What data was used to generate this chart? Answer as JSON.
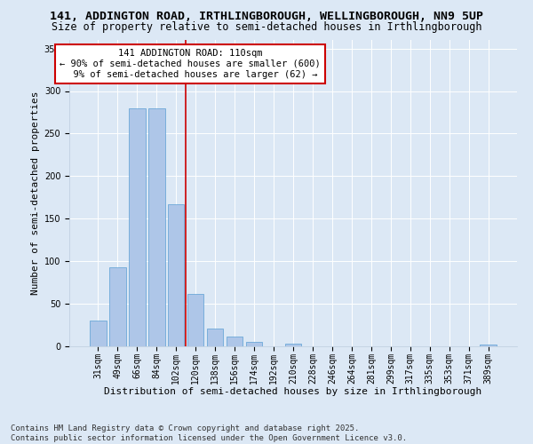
{
  "title_line1": "141, ADDINGTON ROAD, IRTHLINGBOROUGH, WELLINGBOROUGH, NN9 5UP",
  "title_line2": "Size of property relative to semi-detached houses in Irthlingborough",
  "xlabel": "Distribution of semi-detached houses by size in Irthlingborough",
  "ylabel": "Number of semi-detached properties",
  "categories": [
    "31sqm",
    "49sqm",
    "66sqm",
    "84sqm",
    "102sqm",
    "120sqm",
    "138sqm",
    "156sqm",
    "174sqm",
    "192sqm",
    "210sqm",
    "228sqm",
    "246sqm",
    "264sqm",
    "281sqm",
    "299sqm",
    "317sqm",
    "335sqm",
    "353sqm",
    "371sqm",
    "389sqm"
  ],
  "values": [
    30,
    93,
    280,
    280,
    167,
    62,
    21,
    11,
    5,
    0,
    3,
    0,
    0,
    0,
    0,
    0,
    0,
    0,
    0,
    0,
    2
  ],
  "bar_color": "#aec6e8",
  "bar_edge_color": "#5a9fd4",
  "vline_color": "#cc0000",
  "annotation_title": "141 ADDINGTON ROAD: 110sqm",
  "annotation_line2": "← 90% of semi-detached houses are smaller (600)",
  "annotation_line3": "9% of semi-detached houses are larger (62) →",
  "annotation_box_color": "#ffffff",
  "annotation_box_edge": "#cc0000",
  "ylim": [
    0,
    360
  ],
  "yticks": [
    0,
    50,
    100,
    150,
    200,
    250,
    300,
    350
  ],
  "footer_line1": "Contains HM Land Registry data © Crown copyright and database right 2025.",
  "footer_line2": "Contains public sector information licensed under the Open Government Licence v3.0.",
  "bg_color": "#dce8f5",
  "plot_bg_color": "#dce8f5",
  "title_fontsize": 9.5,
  "subtitle_fontsize": 8.5,
  "axis_label_fontsize": 8,
  "tick_fontsize": 7,
  "footer_fontsize": 6.5,
  "annotation_fontsize": 7.5
}
